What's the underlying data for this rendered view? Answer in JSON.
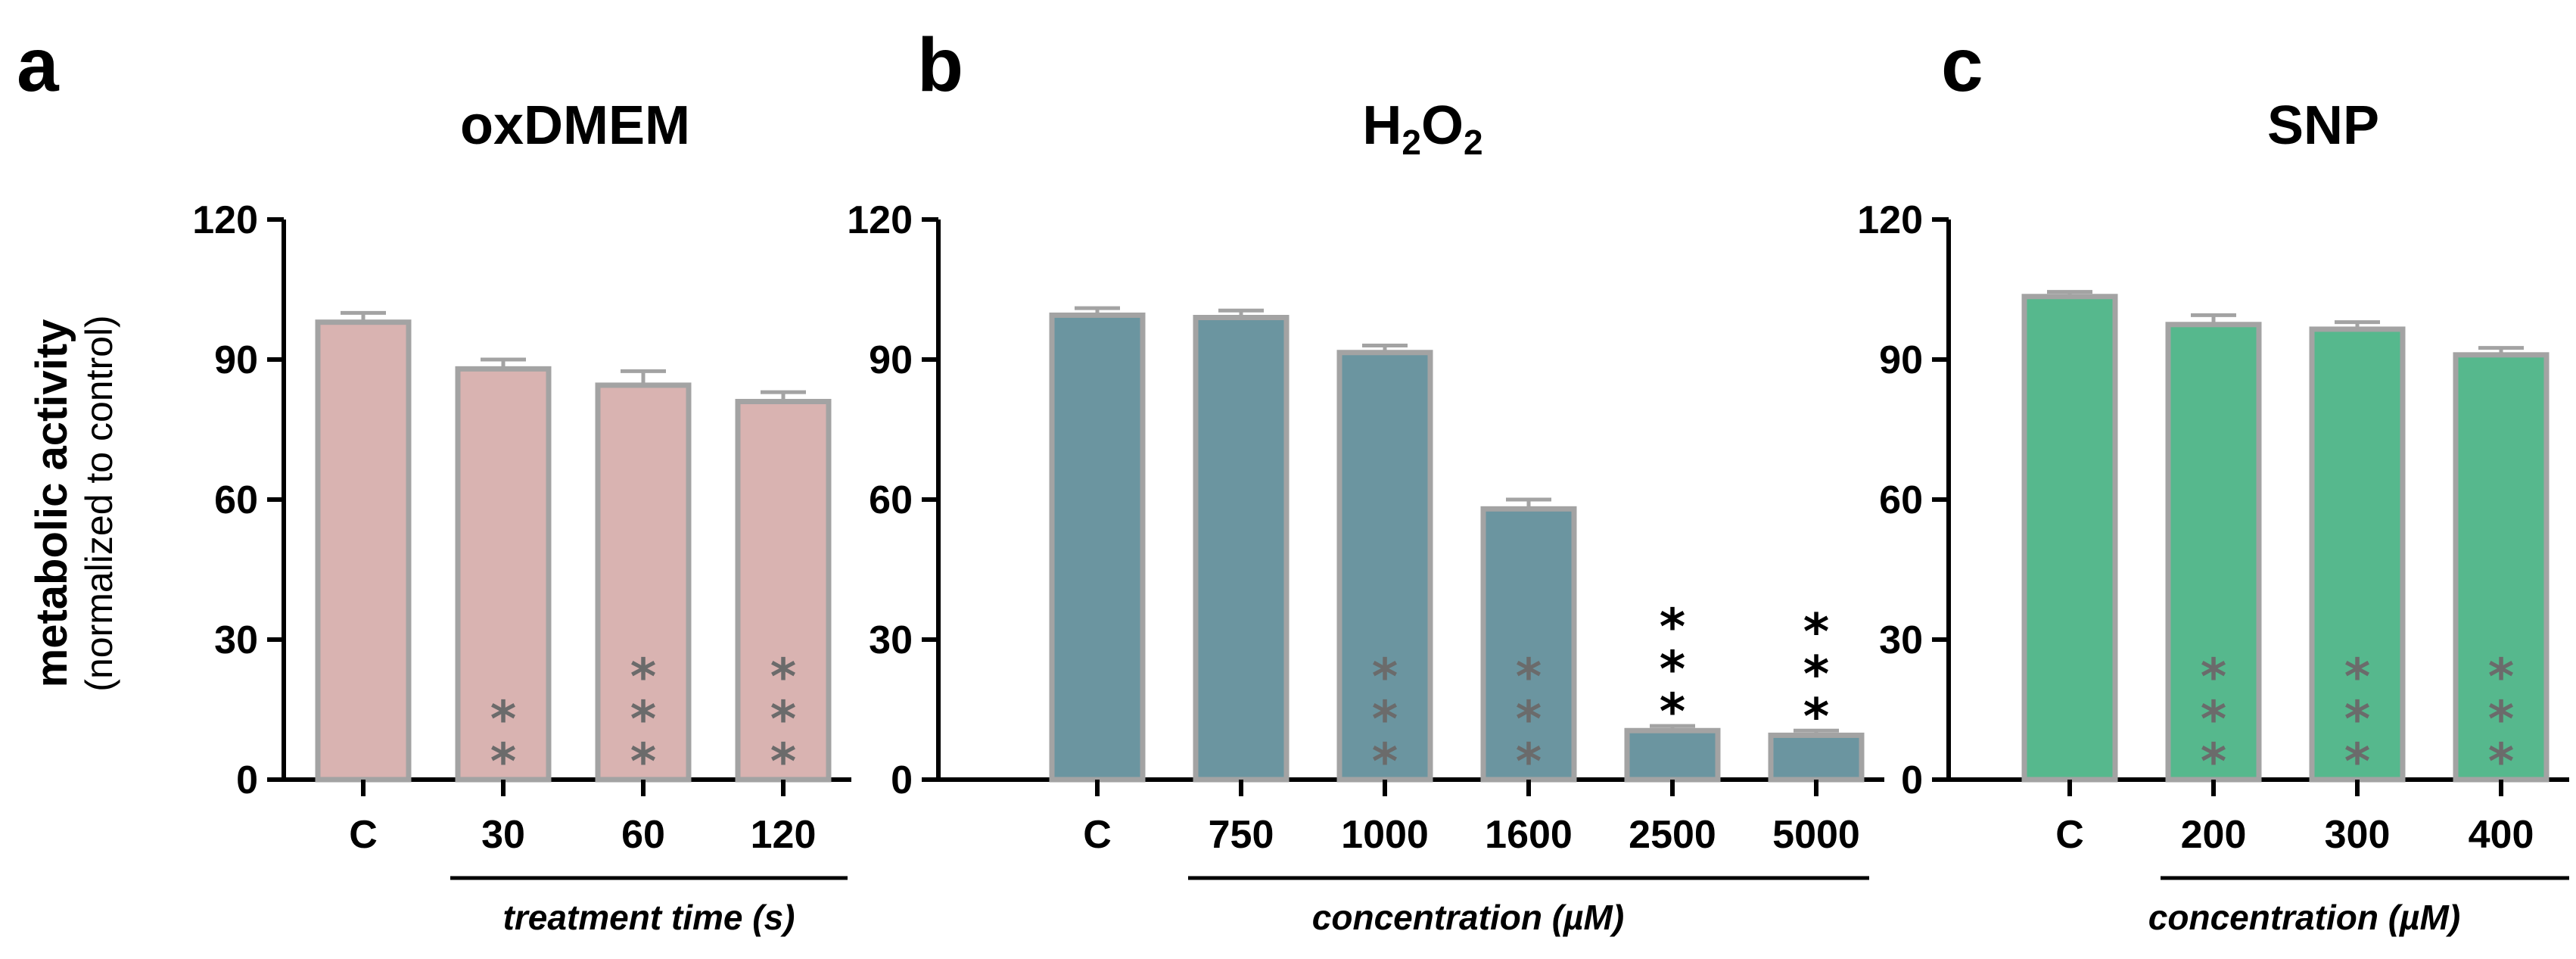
{
  "ylabel": "metabolic activity",
  "ylabel_sub": "(normalized to control)",
  "chart_data": [
    {
      "type": "bar",
      "letter": "a",
      "title": "oxDMEM",
      "categories": [
        "C",
        "30",
        "60",
        "120"
      ],
      "values": [
        98,
        88,
        84.5,
        81
      ],
      "errors": [
        2,
        2,
        3,
        2
      ],
      "significance": [
        "",
        "**",
        "***",
        "***"
      ],
      "xlabel": "treatment time (s)",
      "ylim": [
        0,
        120
      ],
      "yticks": [
        "0",
        "30",
        "60",
        "90",
        "120"
      ],
      "color": "#d9b3b1",
      "sig_color": "#6b6b6b"
    },
    {
      "type": "bar",
      "letter": "b",
      "title": "H2O2",
      "categories": [
        "C",
        "750",
        "1000",
        "1600",
        "2500",
        "5000"
      ],
      "values": [
        99.5,
        99,
        91.5,
        58,
        10.5,
        9.5
      ],
      "errors": [
        1.5,
        1.5,
        1.5,
        2,
        1,
        1
      ],
      "significance": [
        "",
        "",
        "***",
        "***",
        "***",
        "***"
      ],
      "xlabel": "concentration (µM)",
      "ylim": [
        0,
        120
      ],
      "yticks": [
        "0",
        "30",
        "60",
        "90",
        "120"
      ],
      "color": "#6b95a0",
      "sig_color": "#6b6b6b"
    },
    {
      "type": "bar",
      "letter": "c",
      "title": "SNP",
      "categories": [
        "C",
        "200",
        "300",
        "400"
      ],
      "values": [
        103.5,
        97.5,
        96.5,
        91
      ],
      "errors": [
        1,
        2,
        1.5,
        1.5
      ],
      "significance": [
        "",
        "***",
        "***",
        "***"
      ],
      "xlabel": "concentration (µM)",
      "ylim": [
        0,
        120
      ],
      "yticks": [
        "0",
        "30",
        "60",
        "90",
        "120"
      ],
      "color": "#56b88d",
      "sig_color": "#6b6b6b"
    }
  ]
}
